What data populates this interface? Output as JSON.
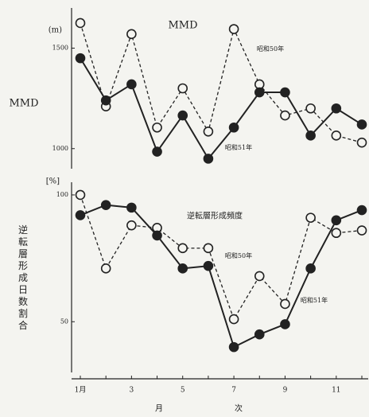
{
  "chart_data": [
    {
      "type": "line",
      "title": "MMD",
      "ylabel": "MMD",
      "unit": "(m)",
      "ylim": [
        900,
        1700
      ],
      "yticks": [
        1000,
        1500
      ],
      "series": [
        {
          "name": "昭和50年",
          "color": "#222",
          "line_style": "dashed",
          "marker": "open",
          "values": [
            1625,
            1210,
            1570,
            1105,
            1300,
            1085,
            1595,
            1320,
            1165,
            1200,
            1065,
            1030
          ]
        },
        {
          "name": "昭和51年",
          "color": "#222",
          "line_style": "solid",
          "marker": "filled",
          "values": [
            1450,
            1240,
            1320,
            985,
            1165,
            950,
            1105,
            1280,
            1280,
            1065,
            1200,
            1120
          ]
        }
      ]
    },
    {
      "type": "line",
      "title": "逆転層形成頻度",
      "ylabel": "逆転層形成日数割合",
      "unit": "[%]",
      "ylim": [
        30,
        105
      ],
      "yticks": [
        50,
        100
      ],
      "categories": [
        "1月",
        null,
        "3",
        null,
        "5",
        null,
        "7",
        null,
        "9",
        null,
        "11",
        null
      ],
      "xlabel": [
        "月",
        "次"
      ],
      "series": [
        {
          "name": "昭和50年",
          "color": "#222",
          "line_style": "dashed",
          "marker": "open",
          "values": [
            100,
            71,
            88,
            87,
            79,
            79,
            51,
            68,
            57,
            91,
            85,
            86
          ]
        },
        {
          "name": "昭和51年",
          "color": "#222",
          "line_style": "solid",
          "marker": "filled",
          "values": [
            92,
            96,
            95,
            84,
            71,
            72,
            40,
            45,
            49,
            71,
            90,
            94
          ]
        }
      ]
    }
  ]
}
